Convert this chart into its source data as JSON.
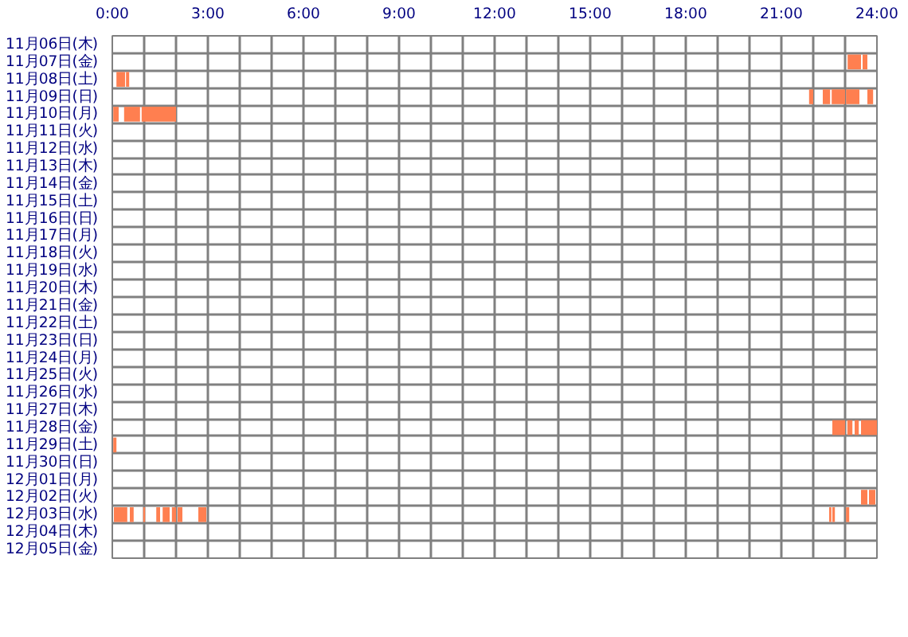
{
  "chart_data": {
    "type": "bar",
    "orientation": "horizontal",
    "categories": [
      "11月06日(木)",
      "11月07日(金)",
      "11月08日(土)",
      "11月09日(日)",
      "11月10日(月)",
      "11月11日(火)",
      "11月12日(水)",
      "11月13日(木)",
      "11月14日(金)",
      "11月15日(土)",
      "11月16日(日)",
      "11月17日(月)",
      "11月18日(火)",
      "11月19日(水)",
      "11月20日(木)",
      "11月21日(金)",
      "11月22日(土)",
      "11月23日(日)",
      "11月24日(月)",
      "11月25日(火)",
      "11月26日(水)",
      "11月27日(木)",
      "11月28日(金)",
      "11月29日(土)",
      "11月30日(日)",
      "12月01日(月)",
      "12月02日(火)",
      "12月03日(水)",
      "12月04日(木)",
      "12月05日(金)"
    ],
    "xlim": [
      0,
      24
    ],
    "xticks": [
      {
        "value": 0,
        "label": "0:00"
      },
      {
        "value": 1,
        "label": null
      },
      {
        "value": 2,
        "label": null
      },
      {
        "value": 3,
        "label": "3:00"
      },
      {
        "value": 4,
        "label": null
      },
      {
        "value": 5,
        "label": null
      },
      {
        "value": 6,
        "label": "6:00"
      },
      {
        "value": 7,
        "label": null
      },
      {
        "value": 8,
        "label": null
      },
      {
        "value": 9,
        "label": "9:00"
      },
      {
        "value": 10,
        "label": null
      },
      {
        "value": 11,
        "label": null
      },
      {
        "value": 12,
        "label": "12:00"
      },
      {
        "value": 13,
        "label": null
      },
      {
        "value": 14,
        "label": null
      },
      {
        "value": 15,
        "label": "15:00"
      },
      {
        "value": 16,
        "label": null
      },
      {
        "value": 17,
        "label": null
      },
      {
        "value": 18,
        "label": "18:00"
      },
      {
        "value": 19,
        "label": null
      },
      {
        "value": 20,
        "label": null
      },
      {
        "value": 21,
        "label": "21:00"
      },
      {
        "value": 22,
        "label": null
      },
      {
        "value": 23,
        "label": null
      },
      {
        "value": 24,
        "label": "24:00"
      }
    ],
    "grid": true,
    "series": [
      {
        "color": "#ff7f50",
        "base": [
          null,
          23.08,
          0.13,
          21.87,
          0.03,
          null,
          null,
          null,
          null,
          null,
          null,
          null,
          null,
          null,
          null,
          null,
          null,
          null,
          null,
          null,
          null,
          null,
          22.6,
          0.03,
          null,
          null,
          23.5,
          0.05,
          null,
          null
        ],
        "values": [
          null,
          0.42,
          0.27,
          0.13,
          0.17,
          null,
          null,
          null,
          null,
          null,
          null,
          null,
          null,
          null,
          null,
          null,
          null,
          null,
          null,
          null,
          null,
          null,
          0.4,
          0.1,
          null,
          null,
          0.2,
          0.42,
          null,
          null
        ]
      },
      {
        "color": "#ff7f50",
        "base": [
          null,
          23.55,
          0.43,
          22.3,
          0.37,
          null,
          null,
          null,
          null,
          null,
          null,
          null,
          null,
          null,
          null,
          null,
          null,
          null,
          null,
          null,
          null,
          null,
          23.07,
          null,
          null,
          null,
          23.75,
          0.55,
          null,
          null
        ],
        "values": [
          null,
          0.15,
          0.1,
          0.23,
          0.5,
          null,
          null,
          null,
          null,
          null,
          null,
          null,
          null,
          null,
          null,
          null,
          null,
          null,
          null,
          null,
          null,
          null,
          0.16,
          null,
          null,
          null,
          0.2,
          0.12,
          null,
          null
        ]
      },
      {
        "color": "#ff7f50",
        "base": [
          null,
          null,
          null,
          22.58,
          0.92,
          null,
          null,
          null,
          null,
          null,
          null,
          null,
          null,
          null,
          null,
          null,
          null,
          null,
          null,
          null,
          null,
          null,
          23.3,
          null,
          null,
          null,
          null,
          0.97,
          null,
          null
        ],
        "values": [
          null,
          null,
          null,
          0.42,
          1.08,
          null,
          null,
          null,
          null,
          null,
          null,
          null,
          null,
          null,
          null,
          null,
          null,
          null,
          null,
          null,
          null,
          null,
          0.13,
          null,
          null,
          null,
          null,
          0.06,
          null,
          null
        ]
      },
      {
        "color": "#ff7f50",
        "base": [
          null,
          null,
          null,
          23.03,
          null,
          null,
          null,
          null,
          null,
          null,
          null,
          null,
          null,
          null,
          null,
          null,
          null,
          null,
          null,
          null,
          null,
          null,
          23.5,
          null,
          null,
          null,
          null,
          1.38,
          null,
          null
        ],
        "values": [
          null,
          null,
          null,
          0.42,
          null,
          null,
          null,
          null,
          null,
          null,
          null,
          null,
          null,
          null,
          null,
          null,
          null,
          null,
          null,
          null,
          null,
          null,
          0.5,
          null,
          null,
          null,
          null,
          0.12,
          null,
          null
        ]
      },
      {
        "color": "#ff7f50",
        "base": [
          null,
          null,
          null,
          23.7,
          null,
          null,
          null,
          null,
          null,
          null,
          null,
          null,
          null,
          null,
          null,
          null,
          null,
          null,
          null,
          null,
          null,
          null,
          null,
          null,
          null,
          null,
          null,
          1.58,
          null,
          null
        ],
        "values": [
          null,
          null,
          null,
          0.18,
          null,
          null,
          null,
          null,
          null,
          null,
          null,
          null,
          null,
          null,
          null,
          null,
          null,
          null,
          null,
          null,
          null,
          null,
          null,
          null,
          null,
          null,
          null,
          0.22,
          null,
          null
        ]
      },
      {
        "color": "#ff7f50",
        "base": [
          null,
          null,
          null,
          null,
          null,
          null,
          null,
          null,
          null,
          null,
          null,
          null,
          null,
          null,
          null,
          null,
          null,
          null,
          null,
          null,
          null,
          null,
          null,
          null,
          null,
          null,
          null,
          1.87,
          null,
          null
        ],
        "values": [
          null,
          null,
          null,
          null,
          null,
          null,
          null,
          null,
          null,
          null,
          null,
          null,
          null,
          null,
          null,
          null,
          null,
          null,
          null,
          null,
          null,
          null,
          null,
          null,
          null,
          null,
          null,
          0.13,
          null,
          null
        ]
      },
      {
        "color": "#ff7f50",
        "base": [
          null,
          null,
          null,
          null,
          null,
          null,
          null,
          null,
          null,
          null,
          null,
          null,
          null,
          null,
          null,
          null,
          null,
          null,
          null,
          null,
          null,
          null,
          null,
          null,
          null,
          null,
          null,
          2.05,
          null,
          null
        ],
        "values": [
          null,
          null,
          null,
          null,
          null,
          null,
          null,
          null,
          null,
          null,
          null,
          null,
          null,
          null,
          null,
          null,
          null,
          null,
          null,
          null,
          null,
          null,
          null,
          null,
          null,
          null,
          null,
          0.15,
          null,
          null
        ]
      },
      {
        "color": "#ff7f50",
        "base": [
          null,
          null,
          null,
          null,
          null,
          null,
          null,
          null,
          null,
          null,
          null,
          null,
          null,
          null,
          null,
          null,
          null,
          null,
          null,
          null,
          null,
          null,
          null,
          null,
          null,
          null,
          null,
          2.7,
          null,
          null
        ],
        "values": [
          null,
          null,
          null,
          null,
          null,
          null,
          null,
          null,
          null,
          null,
          null,
          null,
          null,
          null,
          null,
          null,
          null,
          null,
          null,
          null,
          null,
          null,
          null,
          null,
          null,
          null,
          null,
          0.25,
          null,
          null
        ]
      },
      {
        "color": "#ff7f50",
        "base": [
          null,
          null,
          null,
          null,
          null,
          null,
          null,
          null,
          null,
          null,
          null,
          null,
          null,
          null,
          null,
          null,
          null,
          null,
          null,
          null,
          null,
          null,
          null,
          null,
          null,
          null,
          null,
          22.5,
          null,
          null
        ],
        "values": [
          null,
          null,
          null,
          null,
          null,
          null,
          null,
          null,
          null,
          null,
          null,
          null,
          null,
          null,
          null,
          null,
          null,
          null,
          null,
          null,
          null,
          null,
          null,
          null,
          null,
          null,
          null,
          0.07,
          null,
          null
        ]
      },
      {
        "color": "#ff7f50",
        "base": [
          null,
          null,
          null,
          null,
          null,
          null,
          null,
          null,
          null,
          null,
          null,
          null,
          null,
          null,
          null,
          null,
          null,
          null,
          null,
          null,
          null,
          null,
          null,
          null,
          null,
          null,
          null,
          22.6,
          null,
          null
        ],
        "values": [
          null,
          null,
          null,
          null,
          null,
          null,
          null,
          null,
          null,
          null,
          null,
          null,
          null,
          null,
          null,
          null,
          null,
          null,
          null,
          null,
          null,
          null,
          null,
          null,
          null,
          null,
          null,
          0.08,
          null,
          null
        ]
      },
      {
        "color": "#ff7f50",
        "base": [
          null,
          null,
          null,
          null,
          null,
          null,
          null,
          null,
          null,
          null,
          null,
          null,
          null,
          null,
          null,
          null,
          null,
          null,
          null,
          null,
          null,
          null,
          null,
          null,
          null,
          null,
          null,
          23.03,
          null,
          null
        ],
        "values": [
          null,
          null,
          null,
          null,
          null,
          null,
          null,
          null,
          null,
          null,
          null,
          null,
          null,
          null,
          null,
          null,
          null,
          null,
          null,
          null,
          null,
          null,
          null,
          null,
          null,
          null,
          null,
          0.1,
          null,
          null
        ]
      }
    ]
  }
}
